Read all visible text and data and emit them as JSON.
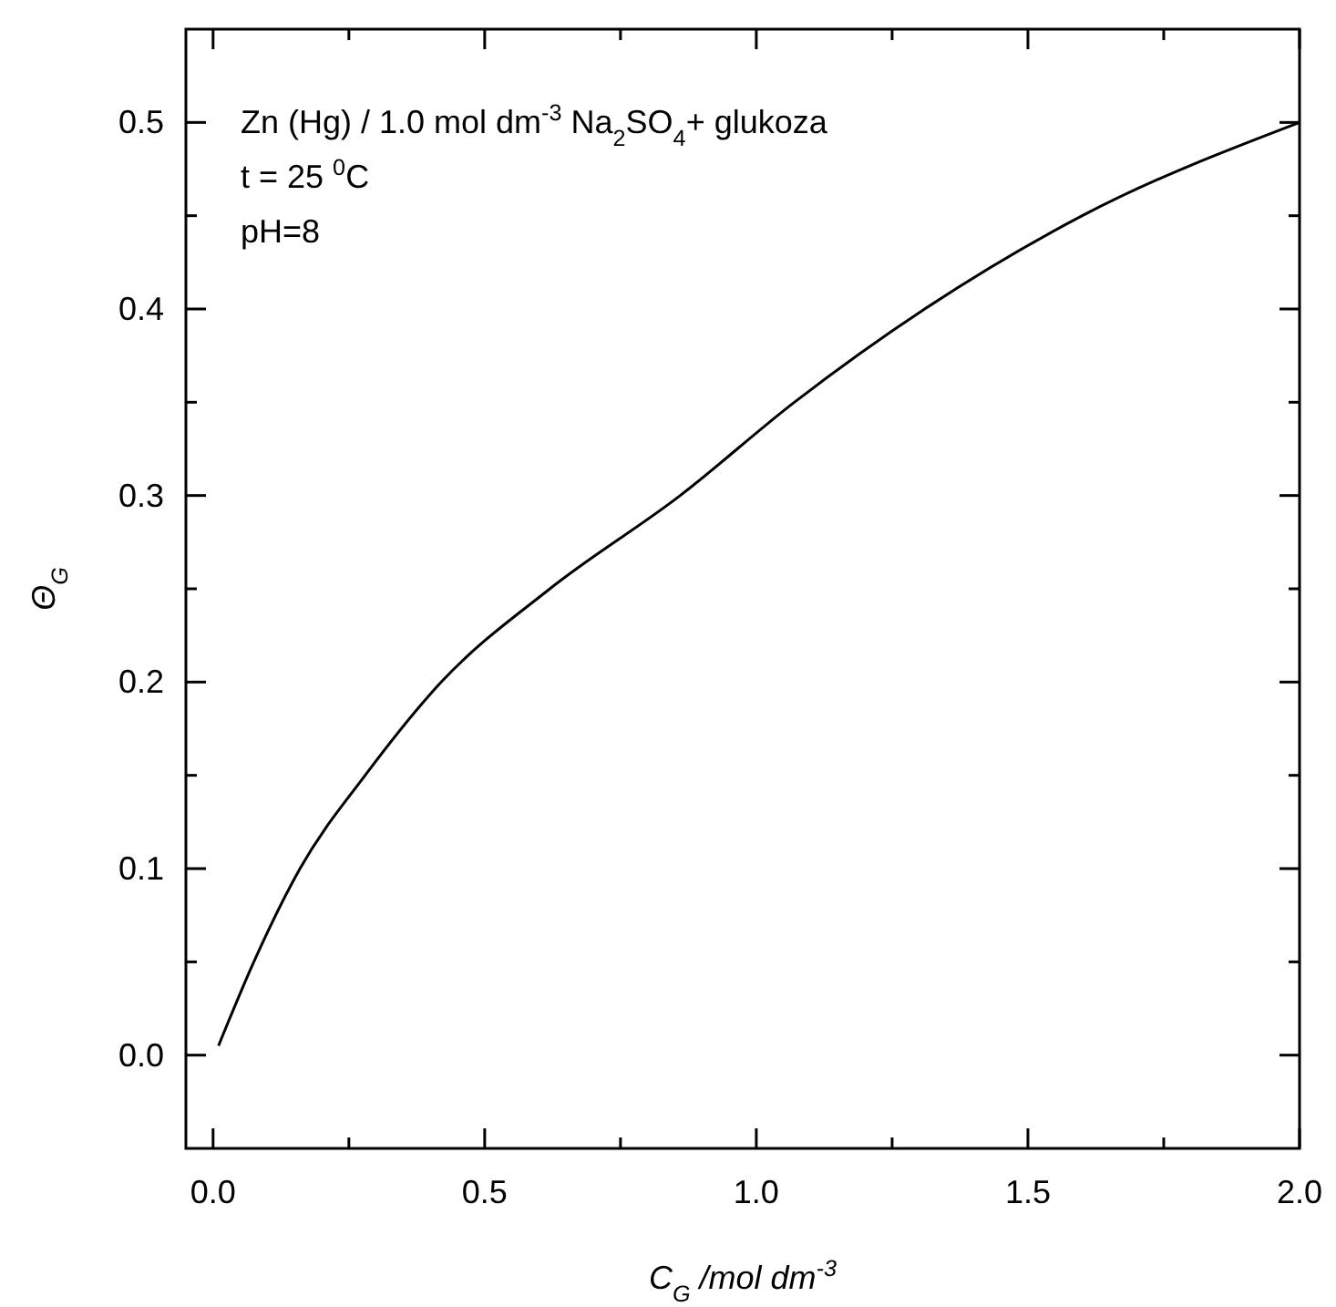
{
  "chart_data": {
    "type": "line",
    "xlabel": "C$_{G}$ /mol dm$^{-3}$",
    "ylabel": "Θ$_{G}$",
    "annotations": [
      "Zn (Hg) / 1.0 mol dm$^{-3}$ Na$_{2}$SO$_{4}$+ glukoza",
      "t = 25 $^{0}$C",
      "pH=8"
    ],
    "x": [
      0.01,
      0.075,
      0.16,
      0.28,
      0.42,
      0.62,
      0.86,
      1.07,
      1.31,
      1.6,
      2.0
    ],
    "series": [
      {
        "color": "#000000",
        "values": [
          0.005,
          0.05,
          0.1,
          0.15,
          0.2,
          0.25,
          0.3,
          0.35,
          0.4,
          0.45,
          0.5
        ]
      }
    ],
    "xlim": [
      -0.05,
      2.0
    ],
    "ylim": [
      -0.05,
      0.55
    ],
    "xticks": [
      {
        "value": 0,
        "label": "0.0"
      },
      {
        "value": 0.25,
        "label": null
      },
      0.5,
      {
        "value": 0.75,
        "label": null
      },
      {
        "value": 1,
        "label": "1.0"
      },
      {
        "value": 1.25,
        "label": null
      },
      1.5,
      {
        "value": 1.75,
        "label": null
      },
      {
        "value": 2,
        "label": "2.0"
      }
    ],
    "yticks": [
      {
        "value": 0,
        "label": "0.0"
      },
      {
        "value": 0.05,
        "label": null
      },
      0.1,
      {
        "value": 0.15,
        "label": null
      },
      0.2,
      {
        "value": 0.25,
        "label": null
      },
      0.3,
      {
        "value": 0.35,
        "label": null
      },
      0.4,
      {
        "value": 0.45,
        "label": null
      },
      0.5
    ],
    "marker": "none",
    "line_style": "solid"
  }
}
